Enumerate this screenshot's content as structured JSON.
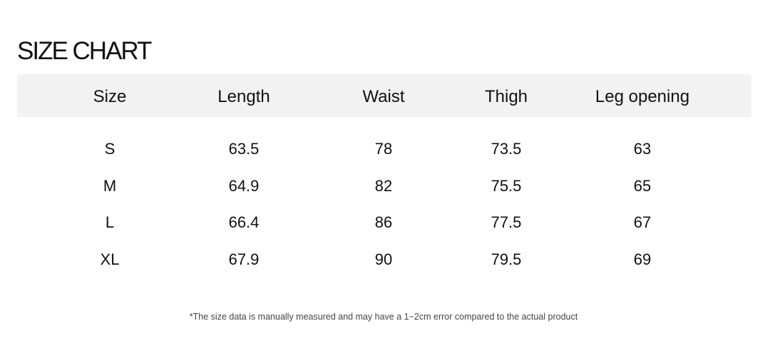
{
  "title": "SIZE CHART",
  "table": {
    "header": [
      "Size",
      "Length",
      "Waist",
      "Thigh",
      "Leg opening"
    ],
    "rows": [
      [
        "S",
        "63.5",
        "78",
        "73.5",
        "63"
      ],
      [
        "M",
        "64.9",
        "82",
        "75.5",
        "65"
      ],
      [
        "L",
        "66.4",
        "86",
        "77.5",
        "67"
      ],
      [
        "XL",
        "67.9",
        "90",
        "79.5",
        "69"
      ]
    ]
  },
  "footnote": "*The size data is manually measured and may have a 1−2cm error compared to the actual product"
}
